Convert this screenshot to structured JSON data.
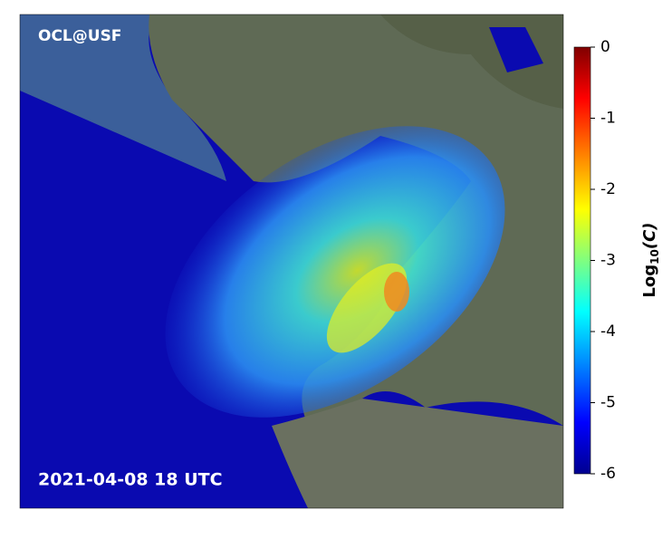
{
  "map": {
    "watermark": "OCL@USF",
    "timestamp": "2021-04-08 18 UTC"
  },
  "colorbar": {
    "lim": [
      -6,
      0
    ],
    "ticks": [
      0,
      -1,
      -2,
      -3,
      -4,
      -5,
      -6
    ],
    "label_main": "Log",
    "label_sub": "10",
    "label_arg": "(C)"
  }
}
